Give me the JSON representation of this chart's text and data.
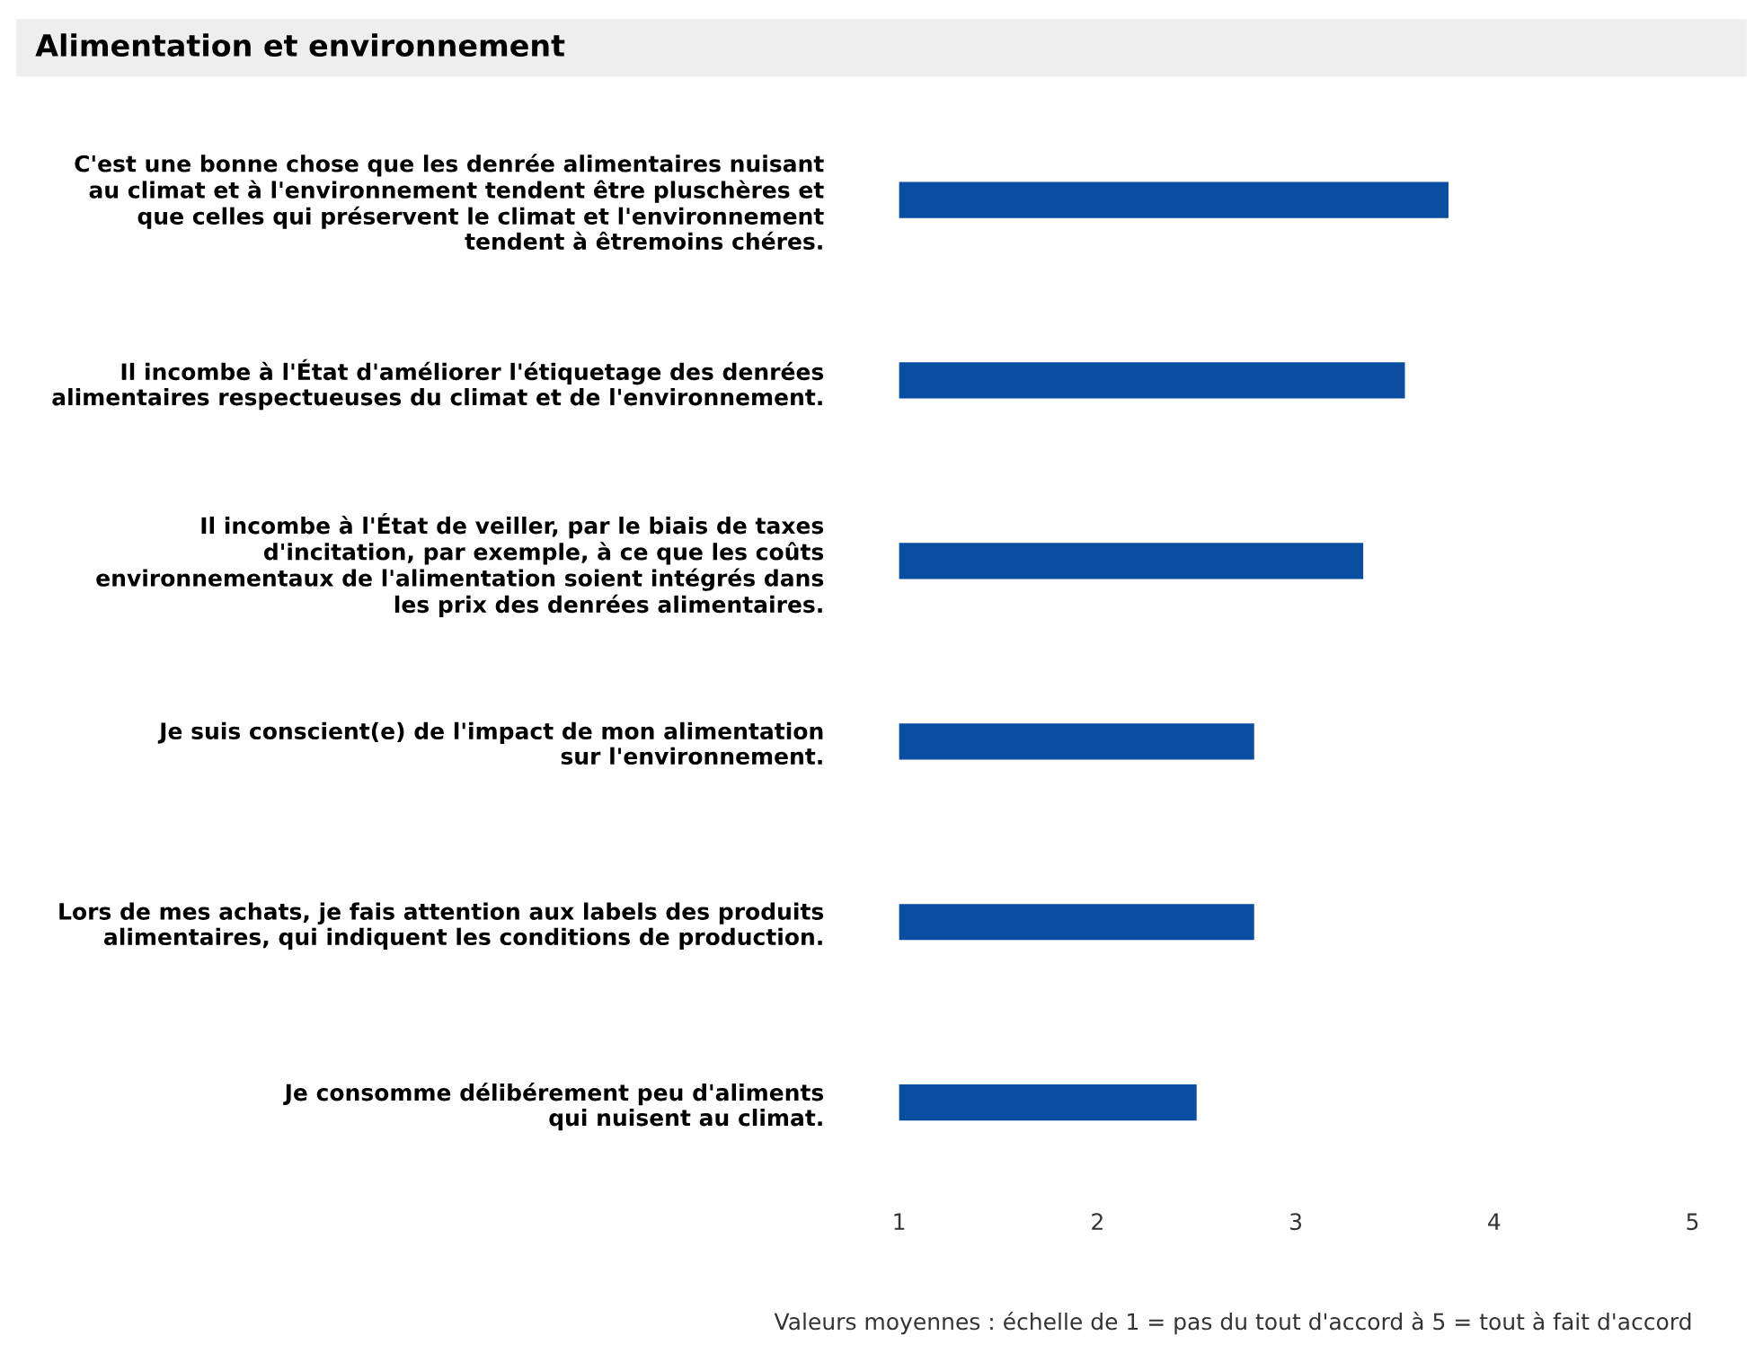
{
  "chart_data": {
    "type": "bar",
    "orientation": "horizontal",
    "title": "Alimentation et environnement",
    "categories": [
      "C'est une bonne chose que les denrée alimentaires nuisant\nau climat et à l'environnement tendent être pluschères et\nque celles qui préservent le climat et l'environnement\ntendent à êtremoins chéres.",
      "Il incombe à l'État d'améliorer l'étiquetage des denrées\nalimentaires respectueuses du climat et de l'environnement.",
      "Il incombe à l'État de veiller, par le biais de taxes\nd'incitation, par exemple, à ce que les coûts\nenvironnementaux de l'alimentation soient intégrés dans\nles prix des denrées alimentaires.",
      "Je suis conscient(e) de l'impact de mon alimentation\nsur l'environnement.",
      "Lors de mes achats, je fais attention aux labels des produits\nalimentaires, qui indiquent les conditions de production.",
      "Je consomme délibérement peu d'aliments\nqui nuisent au climat."
    ],
    "values": [
      3.77,
      3.55,
      3.34,
      2.79,
      2.79,
      2.5
    ],
    "color": "#0a4ea2",
    "xlim": [
      1,
      5
    ],
    "xticks": [
      1,
      2,
      3,
      4,
      5
    ],
    "grid": false,
    "annotations": [
      "Valeurs moyennes : échelle de 1 = pas du tout d'accord à 5 = tout à fait d'accord"
    ]
  }
}
